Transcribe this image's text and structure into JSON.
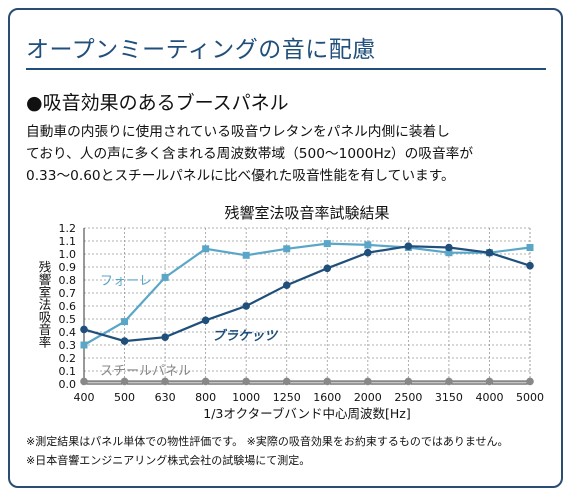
{
  "header": {
    "title": "オープンミーティングの音に配慮"
  },
  "section": {
    "heading": "●吸音効果のあるブースパネル",
    "paragraph_lines": [
      "自動車の内張りに使用されている吸音ウレタンをパネル内側に装着し",
      "ており、人の声に多く含まれる周波数帯域（500〜1000Hz）の吸音率が",
      "0.33〜0.60とスチールパネルに比べ優れた吸音性能を有しています。"
    ]
  },
  "chart_data": {
    "type": "line",
    "title": "残響室法吸音率試験結果",
    "xlabel": "1/3オクターブバンド中心周波数[Hz]",
    "ylabel": "残響室法吸音率",
    "categories": [
      "400",
      "500",
      "630",
      "800",
      "1000",
      "1250",
      "1600",
      "2000",
      "2500",
      "3150",
      "4000",
      "5000"
    ],
    "yticks": [
      "0.0",
      "0.1",
      "0.2",
      "0.3",
      "0.4",
      "0.5",
      "0.6",
      "0.7",
      "0.8",
      "0.9",
      "1.0",
      "1.1",
      "1.2"
    ],
    "ylim": [
      0,
      1.2
    ],
    "grid": true,
    "series": [
      {
        "name": "フォーレ",
        "color": "#5aa6c8",
        "marker": "square",
        "values": [
          0.3,
          0.48,
          0.82,
          1.04,
          0.99,
          1.04,
          1.08,
          1.07,
          1.05,
          1.01,
          1.01,
          1.05
        ]
      },
      {
        "name": "ブラケッツ",
        "color": "#1f4f7a",
        "marker": "circle",
        "values": [
          0.42,
          0.33,
          0.36,
          0.49,
          0.6,
          0.76,
          0.89,
          1.01,
          1.06,
          1.05,
          1.01,
          0.91
        ]
      },
      {
        "name": "スチールパネル",
        "color": "#888888",
        "marker": "circle",
        "values": [
          0.02,
          0.02,
          0.02,
          0.02,
          0.02,
          0.02,
          0.02,
          0.02,
          0.02,
          0.02,
          0.02,
          0.02
        ]
      }
    ]
  },
  "notes": [
    "※測定結果はパネル単体での物性評価です。 ※実際の吸音効果をお約束するものではありません。",
    "※日本音響エンジニアリング株式会社の試験場にて測定。"
  ]
}
